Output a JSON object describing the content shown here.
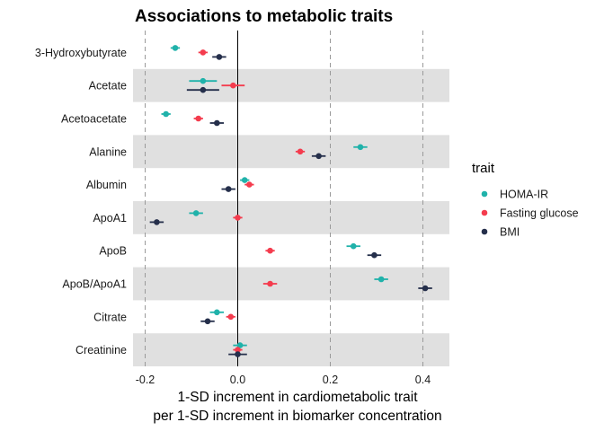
{
  "chart_data": {
    "type": "forest",
    "title": "Associations to metabolic traits",
    "xlabel_line1": "1-SD increment in cardiometabolic trait",
    "xlabel_line2": "per 1-SD increment in biomarker concentration",
    "xlim": [
      -0.22,
      0.45
    ],
    "xticks": [
      -0.2,
      0.0,
      0.2,
      0.4
    ],
    "xtick_labels": [
      "-0.2",
      "0.0",
      "0.2",
      "0.4"
    ],
    "dashed_lines_at": [
      -0.2,
      0.2,
      0.4
    ],
    "zero_line_at": 0.0,
    "categories": [
      "3-Hydroxybutyrate",
      "Acetate",
      "Acetoacetate",
      "Alanine",
      "Albumin",
      "ApoA1",
      "ApoB",
      "ApoB/ApoA1",
      "Citrate",
      "Creatinine"
    ],
    "legend_title": "trait",
    "series": [
      {
        "name": "HOMA-IR",
        "color": "#20b2aa",
        "estimates": [
          -0.135,
          -0.075,
          -0.155,
          0.265,
          0.015,
          -0.09,
          0.25,
          0.31,
          -0.045,
          0.005
        ],
        "ci_low": [
          -0.145,
          -0.105,
          -0.165,
          0.25,
          0.005,
          -0.105,
          0.235,
          0.295,
          -0.06,
          -0.01
        ],
        "ci_high": [
          -0.125,
          -0.045,
          -0.145,
          0.28,
          0.025,
          -0.075,
          0.265,
          0.325,
          -0.03,
          0.02
        ]
      },
      {
        "name": "Fasting glucose",
        "color": "#f43c4e",
        "estimates": [
          -0.075,
          -0.01,
          -0.085,
          0.135,
          0.025,
          0.0,
          0.07,
          0.07,
          -0.015,
          0.0
        ],
        "ci_low": [
          -0.085,
          -0.035,
          -0.095,
          0.125,
          0.015,
          -0.01,
          0.06,
          0.055,
          -0.025,
          -0.01
        ],
        "ci_high": [
          -0.065,
          0.015,
          -0.075,
          0.145,
          0.035,
          0.01,
          0.08,
          0.085,
          -0.005,
          0.01
        ]
      },
      {
        "name": "BMI",
        "color": "#252f4b",
        "estimates": [
          -0.04,
          -0.075,
          -0.045,
          0.175,
          -0.02,
          -0.175,
          0.295,
          0.405,
          -0.065,
          0.0
        ],
        "ci_low": [
          -0.055,
          -0.11,
          -0.06,
          0.16,
          -0.035,
          -0.19,
          0.28,
          0.39,
          -0.08,
          -0.02
        ],
        "ci_high": [
          -0.025,
          -0.04,
          -0.03,
          0.19,
          -0.005,
          -0.16,
          0.31,
          0.42,
          -0.05,
          0.02
        ]
      }
    ]
  }
}
